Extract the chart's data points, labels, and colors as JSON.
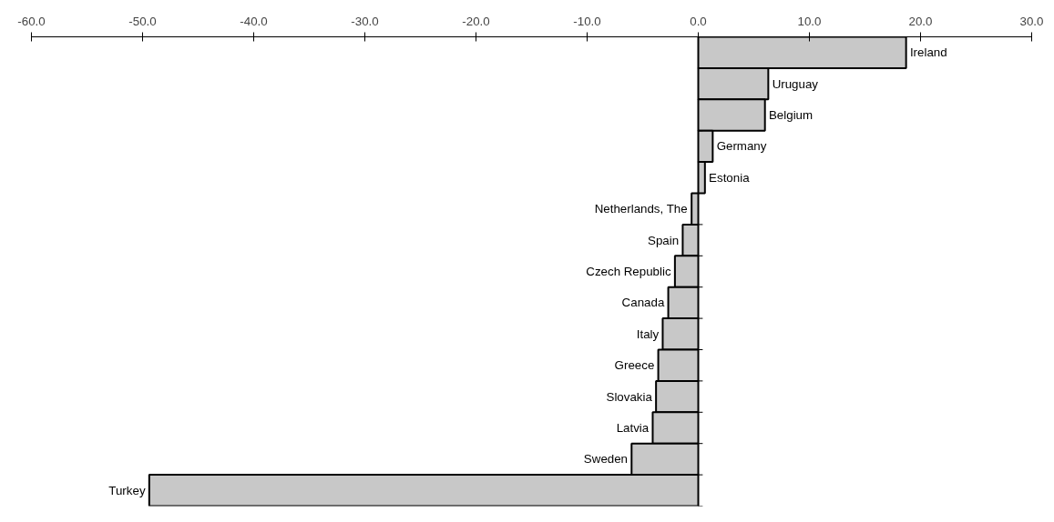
{
  "chart_data": {
    "type": "bar",
    "orientation": "horizontal",
    "color": "#c8c8c8",
    "categories": [
      "Ireland",
      "Uruguay",
      "Belgium",
      "Germany",
      "Estonia",
      "Netherlands, The",
      "Spain",
      "Czech Republic",
      "Canada",
      "Italy",
      "Greece",
      "Slovakia",
      "Latvia",
      "Sweden",
      "Turkey"
    ],
    "values": [
      18.7,
      6.3,
      6.0,
      1.3,
      0.6,
      -0.6,
      -1.4,
      -2.1,
      -2.7,
      -3.2,
      -3.6,
      -3.8,
      -4.1,
      -6.0,
      -49.4
    ],
    "xlim": [
      -60,
      30
    ],
    "xticks": [
      {
        "value": -60,
        "label": "-60.0"
      },
      {
        "value": -50,
        "label": "-50.0"
      },
      {
        "value": -40,
        "label": "-40.0"
      },
      {
        "value": -30,
        "label": "-30.0"
      },
      {
        "value": -20,
        "label": "-20.0"
      },
      {
        "value": -10,
        "label": "-10.0"
      },
      {
        "value": 0,
        "label": "0.0"
      },
      {
        "value": 10,
        "label": "10.0"
      },
      {
        "value": 20,
        "label": "20.0"
      },
      {
        "value": 30,
        "label": "30.0"
      }
    ],
    "grid": false
  }
}
